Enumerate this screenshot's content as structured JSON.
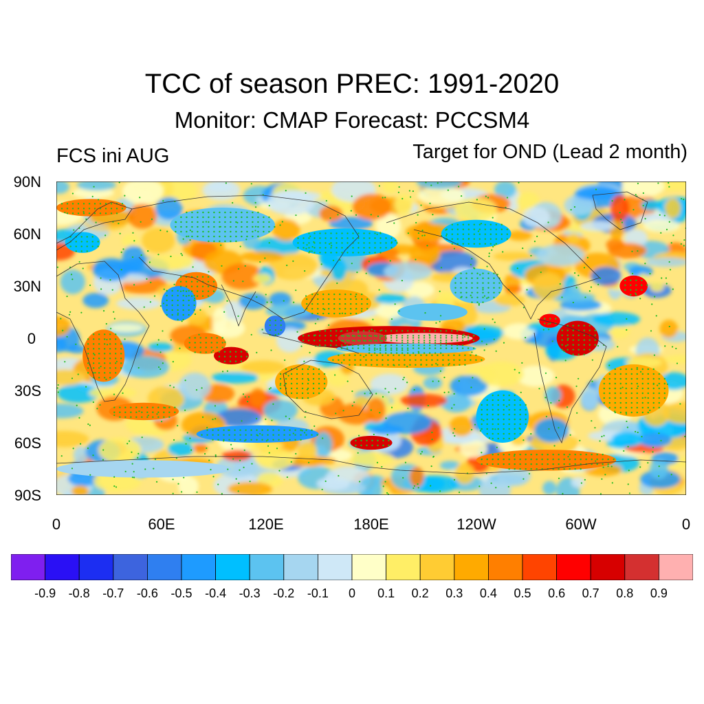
{
  "title": "TCC of season PREC: 1991-2020",
  "subtitle": "Monitor: CMAP   Forecast: PCCSM4",
  "left_label": "FCS ini AUG",
  "right_label": "Target for OND (Lead 2 month)",
  "lat_ticks": [
    "90N",
    "60N",
    "30N",
    "0",
    "30S",
    "60S",
    "90S"
  ],
  "lon_ticks": [
    "0",
    "60E",
    "120E",
    "180E",
    "120W",
    "60W",
    "0"
  ],
  "colors": {
    "significance_dot": "#22bb22",
    "coastline": "#333333",
    "frame": "#000000"
  },
  "colorbar": {
    "colors": [
      "#7f1fef",
      "#2a10f5",
      "#1c2ef2",
      "#3d64de",
      "#2f7ff0",
      "#1e9bff",
      "#00bfff",
      "#5cc3f0",
      "#a6d6f0",
      "#cfe8f7",
      "#ffffc8",
      "#ffee66",
      "#ffcc33",
      "#ffaa00",
      "#ff7f00",
      "#ff4400",
      "#ff0000",
      "#d70000",
      "#d43030",
      "#ffb0b0"
    ],
    "labels": [
      "-0.9",
      "-0.8",
      "-0.7",
      "-0.6",
      "-0.5",
      "-0.4",
      "-0.3",
      "-0.2",
      "-0.1",
      "0",
      "0.1",
      "0.2",
      "0.3",
      "0.4",
      "0.5",
      "0.6",
      "0.7",
      "0.8",
      "0.9"
    ]
  },
  "map_features": [
    {
      "lon": 190,
      "lat": 0,
      "rlon": 52,
      "rlat": 7,
      "value": 0.75
    },
    {
      "lon": 210,
      "lat": 0,
      "rlon": 28,
      "rlat": 3,
      "value": 0.92
    },
    {
      "lon": 175,
      "lat": 0,
      "rlon": 14,
      "rlat": 4,
      "value": 0.85
    },
    {
      "lon": 200,
      "lat": -12,
      "rlon": 45,
      "rlat": 5,
      "value": 0.35
    },
    {
      "lon": 200,
      "lat": -6,
      "rlon": 40,
      "rlat": 3,
      "value": -0.3
    },
    {
      "lon": 125,
      "lat": 7,
      "rlon": 6,
      "rlat": 6,
      "value": -0.55
    },
    {
      "lon": 100,
      "lat": -10,
      "rlon": 10,
      "rlat": 5,
      "value": 0.7
    },
    {
      "lon": 85,
      "lat": -3,
      "rlon": 12,
      "rlat": 6,
      "value": 0.45
    },
    {
      "lon": 298,
      "lat": 0,
      "rlon": 12,
      "rlat": 10,
      "value": 0.7
    },
    {
      "lon": 282,
      "lat": 10,
      "rlon": 6,
      "rlat": 4,
      "value": 0.65
    },
    {
      "lon": 180,
      "lat": -60,
      "rlon": 12,
      "rlat": 4,
      "value": 0.7
    },
    {
      "lon": 115,
      "lat": -55,
      "rlon": 35,
      "rlat": 5,
      "value": -0.5
    },
    {
      "lon": 255,
      "lat": -45,
      "rlon": 15,
      "rlat": 15,
      "value": -0.4
    },
    {
      "lon": 50,
      "lat": -42,
      "rlon": 20,
      "rlat": 5,
      "value": 0.45
    },
    {
      "lon": 27,
      "lat": -10,
      "rlon": 12,
      "rlat": 15,
      "value": 0.4
    },
    {
      "lon": 165,
      "lat": 55,
      "rlon": 30,
      "rlat": 8,
      "value": -0.35
    },
    {
      "lon": 240,
      "lat": 60,
      "rlon": 20,
      "rlat": 8,
      "value": -0.4
    },
    {
      "lon": 95,
      "lat": 65,
      "rlon": 30,
      "rlat": 10,
      "value": -0.3
    },
    {
      "lon": 330,
      "lat": 30,
      "rlon": 8,
      "rlat": 6,
      "value": 0.65
    },
    {
      "lon": 240,
      "lat": 30,
      "rlon": 15,
      "rlat": 10,
      "value": -0.3
    },
    {
      "lon": 80,
      "lat": 30,
      "rlon": 12,
      "rlat": 8,
      "value": 0.4
    },
    {
      "lon": 20,
      "lat": 75,
      "rlon": 20,
      "rlat": 5,
      "value": 0.4
    },
    {
      "lon": 70,
      "lat": 20,
      "rlon": 10,
      "rlat": 10,
      "value": -0.45
    },
    {
      "lon": 330,
      "lat": -30,
      "rlon": 20,
      "rlat": 15,
      "value": 0.35
    },
    {
      "lon": 50,
      "lat": -75,
      "rlon": 50,
      "rlat": 5,
      "value": -0.2
    },
    {
      "lon": 280,
      "lat": -70,
      "rlon": 40,
      "rlat": 6,
      "value": 0.4
    },
    {
      "lon": 140,
      "lat": -25,
      "rlon": 15,
      "rlat": 10,
      "value": 0.3
    },
    {
      "lon": 160,
      "lat": 20,
      "rlon": 20,
      "rlat": 8,
      "value": 0.35
    },
    {
      "lon": 15,
      "lat": 55,
      "rlon": 10,
      "rlat": 6,
      "value": -0.35
    },
    {
      "lon": 215,
      "lat": 15,
      "rlon": 20,
      "rlat": 5,
      "value": -0.25
    }
  ]
}
